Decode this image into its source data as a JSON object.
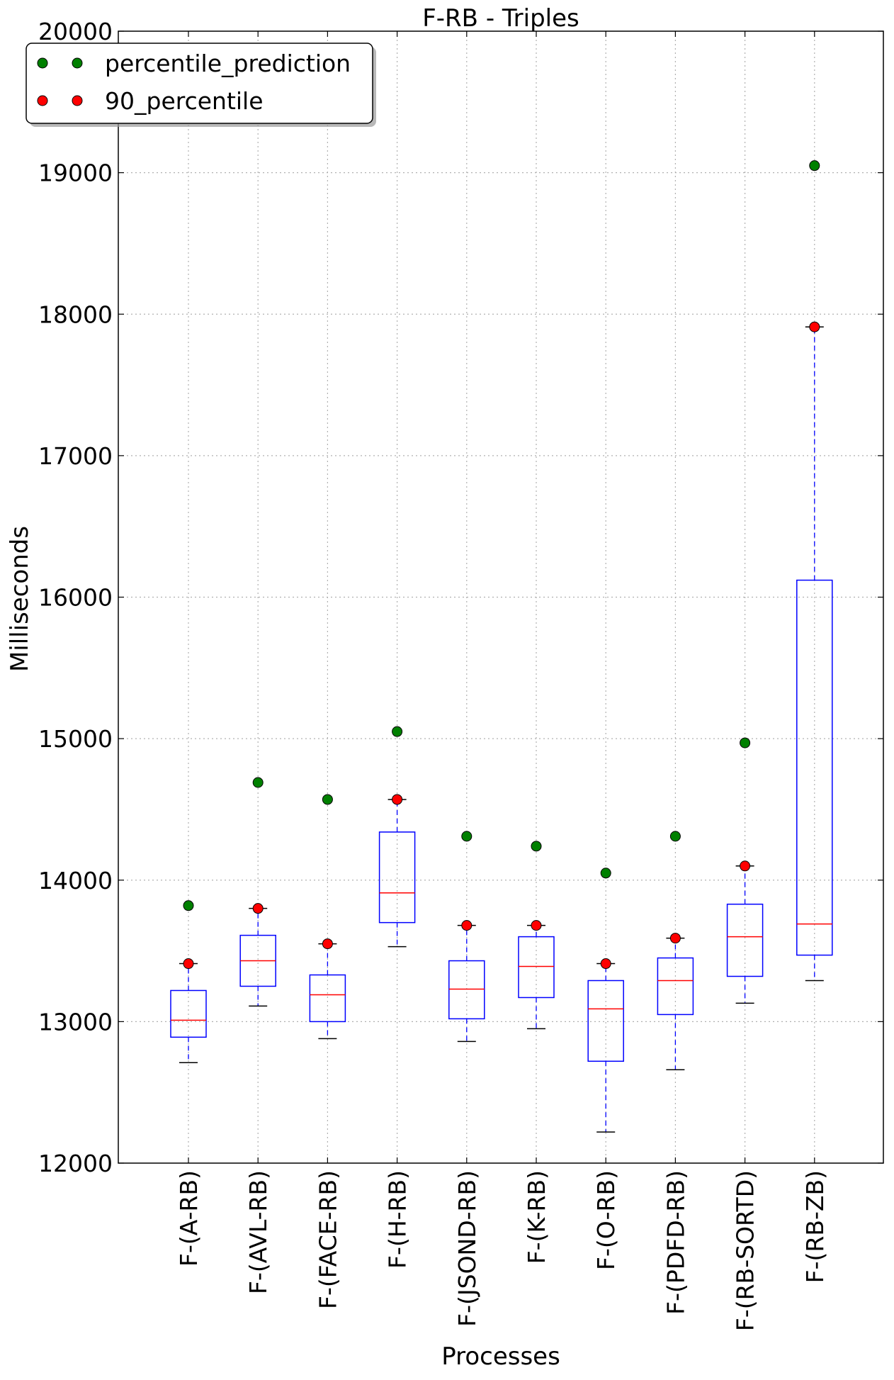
{
  "chart_data": {
    "type": "box",
    "title": "F-RB - Triples",
    "xlabel": "Processes",
    "ylabel": "Milliseconds",
    "ylim": [
      12000,
      20000
    ],
    "yticks": [
      12000,
      13000,
      14000,
      15000,
      16000,
      17000,
      18000,
      19000,
      20000
    ],
    "ytick_labels": [
      "12000",
      "13000",
      "14000",
      "15000",
      "16000",
      "17000",
      "18000",
      "19000",
      "20000"
    ],
    "grid": true,
    "legend_position": "top-left",
    "categories": [
      "F-(A-RB)",
      "F-(AVL-RB)",
      "F-(FACE-RB)",
      "F-(H-RB)",
      "F-(JSOND-RB)",
      "F-(K-RB)",
      "F-(O-RB)",
      "F-(PDFD-RB)",
      "F-(RB-SORTD)",
      "F-(RB-ZB)"
    ],
    "boxes": [
      {
        "whisker_low": 12710,
        "q1": 12890,
        "median": 13010,
        "q3": 13220,
        "whisker_high": 13410
      },
      {
        "whisker_low": 13110,
        "q1": 13250,
        "median": 13430,
        "q3": 13610,
        "whisker_high": 13800
      },
      {
        "whisker_low": 12880,
        "q1": 13000,
        "median": 13190,
        "q3": 13330,
        "whisker_high": 13550
      },
      {
        "whisker_low": 13530,
        "q1": 13700,
        "median": 13910,
        "q3": 14340,
        "whisker_high": 14570
      },
      {
        "whisker_low": 12860,
        "q1": 13020,
        "median": 13230,
        "q3": 13430,
        "whisker_high": 13680
      },
      {
        "whisker_low": 12950,
        "q1": 13170,
        "median": 13390,
        "q3": 13600,
        "whisker_high": 13680
      },
      {
        "whisker_low": 12220,
        "q1": 12720,
        "median": 13090,
        "q3": 13290,
        "whisker_high": 13410
      },
      {
        "whisker_low": 12660,
        "q1": 13050,
        "median": 13290,
        "q3": 13450,
        "whisker_high": 13590
      },
      {
        "whisker_low": 13130,
        "q1": 13320,
        "median": 13600,
        "q3": 13830,
        "whisker_high": 14100
      },
      {
        "whisker_low": 13290,
        "q1": 13470,
        "median": 13690,
        "q3": 16120,
        "whisker_high": 17910
      }
    ],
    "series": [
      {
        "name": "percentile_prediction",
        "color": "#008000",
        "values": [
          13820,
          14690,
          14570,
          15050,
          14310,
          14240,
          14050,
          14310,
          14970,
          19050
        ]
      },
      {
        "name": "90_percentile",
        "color": "#ff0000",
        "values": [
          13410,
          13800,
          13550,
          14570,
          13680,
          13680,
          13410,
          13590,
          14100,
          17910
        ]
      }
    ],
    "colors": {
      "box": "#0000ff",
      "median": "#ff0000",
      "whisker": "#0000ff",
      "cap": "#000000",
      "grid": "#b0b0b0"
    }
  }
}
